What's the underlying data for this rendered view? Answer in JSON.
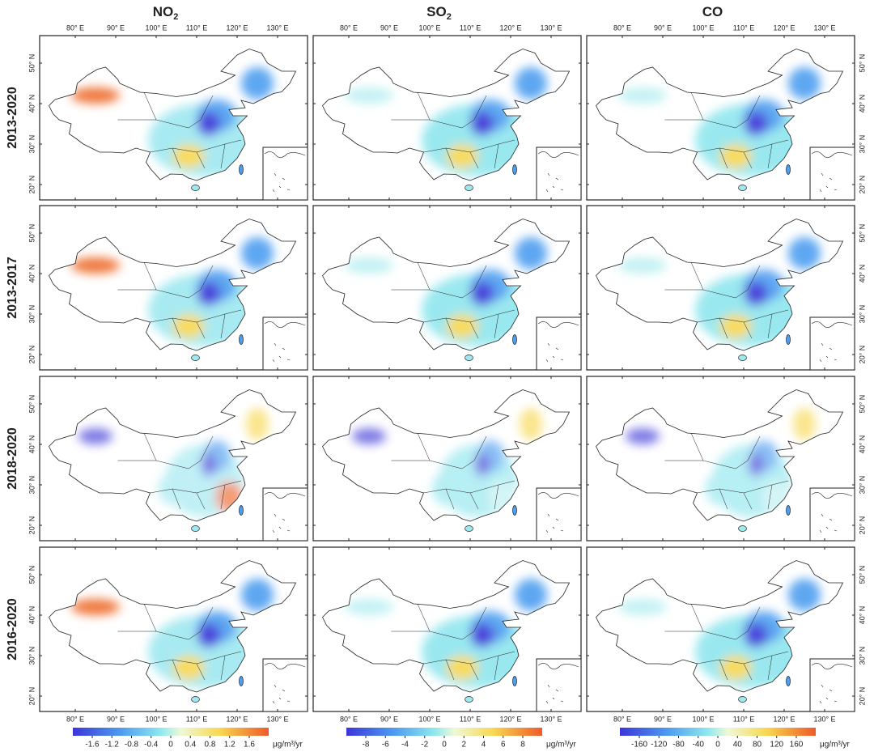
{
  "columns": [
    {
      "title": "NO",
      "subscript": "2",
      "colorbar": {
        "ticks": [
          "-1.6",
          "-1.2",
          "-0.8",
          "-0.4",
          "0",
          "0.4",
          "0.8",
          "1.2",
          "1.6"
        ],
        "unit": "μg/m³/yr"
      }
    },
    {
      "title": "SO",
      "subscript": "2",
      "colorbar": {
        "ticks": [
          "-8",
          "-6",
          "-4",
          "-2",
          "0",
          "2",
          "4",
          "6",
          "8"
        ],
        "unit": "μg/m³/yr"
      }
    },
    {
      "title": "CO",
      "subscript": "",
      "colorbar": {
        "ticks": [
          "-160",
          "-120",
          "-80",
          "-40",
          "0",
          "40",
          "80",
          "120",
          "160"
        ],
        "unit": "μg/m³/yr"
      }
    }
  ],
  "rows": [
    "2013-2020",
    "2013-2017",
    "2018-2020",
    "2016-2020"
  ],
  "lon_labels": [
    "80° E",
    "90° E",
    "100° E",
    "110° E",
    "120° E",
    "130° E"
  ],
  "lat_labels": [
    "50° N",
    "40° N",
    "30° N",
    "20° N"
  ]
}
